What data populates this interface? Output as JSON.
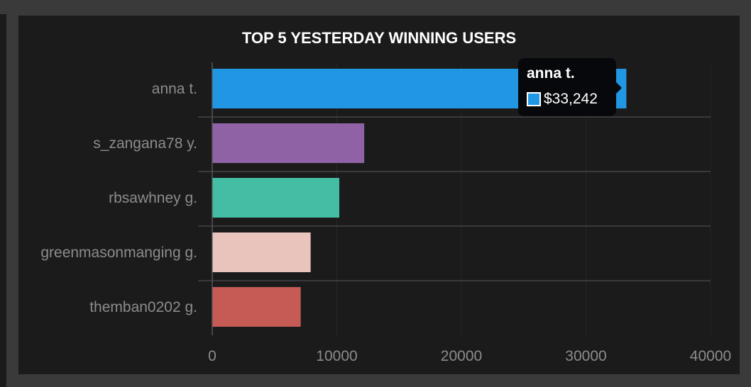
{
  "chart_data": {
    "type": "bar",
    "orientation": "horizontal",
    "title": "TOP 5 YESTERDAY WINNING USERS",
    "categories": [
      "anna t.",
      "s_zangana78 y.",
      "rbsawhney g.",
      "greenmasonmanging g.",
      "themban0202 g."
    ],
    "values": [
      33242,
      12200,
      10200,
      7900,
      7100
    ],
    "colors": [
      "#2196e3",
      "#8e62a4",
      "#43bda3",
      "#e8c4bd",
      "#c65b55"
    ],
    "xlim": [
      0,
      40000
    ],
    "xticks": [
      "0",
      "10000",
      "20000",
      "30000",
      "40000"
    ],
    "xlabel": "",
    "ylabel": "",
    "grid": true,
    "tooltip": {
      "name": "anna t.",
      "value": "$33,242",
      "color": "#2196e3"
    }
  }
}
